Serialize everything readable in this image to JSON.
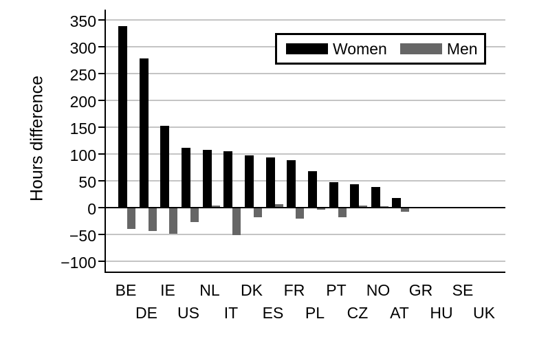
{
  "figure": {
    "y_axis_title": "Hours difference",
    "colors": {
      "women_bar": "#000000",
      "men_bar": "#666666",
      "gridline": "#c4c4c4",
      "axis_line": "#000000",
      "background": "#ffffff",
      "legend_border": "#000000"
    }
  },
  "chart_data": {
    "type": "bar",
    "title": "",
    "xlabel": "",
    "ylabel": "Hours difference",
    "ylim": [
      -120,
      368
    ],
    "yticks": [
      350,
      300,
      250,
      200,
      150,
      100,
      50,
      0,
      -50,
      -100
    ],
    "grid": true,
    "legend_position": "top-right-inside",
    "categories": [
      "BE",
      "DE",
      "IE",
      "US",
      "NL",
      "IT",
      "DK",
      "ES",
      "FR",
      "PL",
      "PT",
      "CZ",
      "NO",
      "AT",
      "GR",
      "HU",
      "SE",
      "UK"
    ],
    "series": [
      {
        "name": "Women",
        "color": "#000000",
        "values": [
          338,
          278,
          153,
          111,
          108,
          105,
          98,
          94,
          89,
          68,
          47,
          44,
          38,
          18,
          0,
          0,
          0,
          0
        ]
      },
      {
        "name": "Men",
        "color": "#666666",
        "values": [
          -38,
          -42,
          -48,
          -25,
          4,
          -50,
          -17,
          6,
          -19,
          -3,
          -17,
          4,
          3,
          -7,
          0,
          0,
          0,
          0
        ]
      }
    ]
  }
}
